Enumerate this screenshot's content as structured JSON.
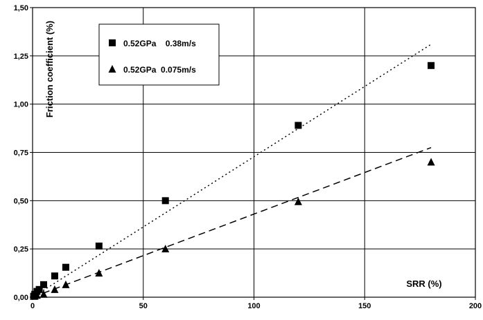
{
  "chart_data": {
    "type": "scatter",
    "xlabel": "SRR (%)",
    "ylabel": "Friction coefficient (%)",
    "xlim": [
      0,
      200
    ],
    "ylim": [
      0,
      1.5
    ],
    "x_ticks": [
      {
        "value": 0,
        "label": "0"
      },
      {
        "value": 50,
        "label": "50"
      },
      {
        "value": 100,
        "label": "100"
      },
      {
        "value": 150,
        "label": "150"
      },
      {
        "value": 200,
        "label": "200"
      }
    ],
    "y_ticks": [
      {
        "value": 0,
        "label": "0,00"
      },
      {
        "value": 0.25,
        "label": "0,25"
      },
      {
        "value": 0.5,
        "label": "0,50"
      },
      {
        "value": 0.75,
        "label": "0,75"
      },
      {
        "value": 1.0,
        "label": "1,00"
      },
      {
        "value": 1.25,
        "label": "1,25"
      },
      {
        "value": 1.5,
        "label": "1,50"
      }
    ],
    "grid": true,
    "legend_position": "top-left",
    "series": [
      {
        "name": "0.52GPa    0.38m/s",
        "marker": "square",
        "x": [
          0.5,
          1,
          2,
          3,
          5,
          10,
          15,
          30,
          60,
          120,
          180
        ],
        "y": [
          0.005,
          0.015,
          0.03,
          0.04,
          0.065,
          0.11,
          0.155,
          0.265,
          0.5,
          0.89,
          1.2
        ],
        "trend": {
          "style": "dotted",
          "x": [
            0,
            180
          ],
          "y": [
            0.0,
            1.31
          ]
        }
      },
      {
        "name": "0.52GPa  0.075m/s",
        "marker": "triangle",
        "x": [
          0.5,
          1,
          2,
          5,
          10,
          15,
          30,
          60,
          120,
          180
        ],
        "y": [
          0.005,
          0.005,
          0.01,
          0.015,
          0.04,
          0.065,
          0.125,
          0.25,
          0.495,
          0.7
        ],
        "trend": {
          "style": "dashed",
          "x": [
            0,
            180
          ],
          "y": [
            0.0,
            0.775
          ]
        }
      }
    ]
  }
}
